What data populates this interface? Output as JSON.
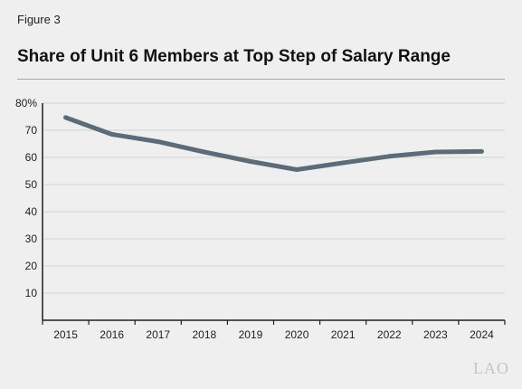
{
  "figure_label": "Figure 3",
  "title": "Share of Unit 6 Members at Top Step of Salary Range",
  "watermark": "LAO",
  "chart_data": {
    "type": "line",
    "title": "Share of Unit 6 Members at Top Step of Salary Range",
    "xlabel": "",
    "ylabel": "",
    "x": [
      "2015",
      "2016",
      "2017",
      "2018",
      "2019",
      "2020",
      "2021",
      "2022",
      "2023",
      "2024"
    ],
    "series": [
      {
        "values": [
          74.7,
          68.5,
          65.8,
          62.0,
          58.5,
          55.5,
          58.0,
          60.4,
          62.0,
          62.2
        ]
      }
    ],
    "ylim": [
      0,
      80
    ],
    "yticks": [
      10,
      20,
      30,
      40,
      50,
      60,
      70,
      80
    ],
    "ytick_labels": [
      "10",
      "20",
      "30",
      "40",
      "50",
      "60",
      "70",
      "80%"
    ],
    "grid": true,
    "line_color": "#5b6c78",
    "grid_color": "#d2d4d3",
    "axis_color": "#1f1f1f"
  }
}
